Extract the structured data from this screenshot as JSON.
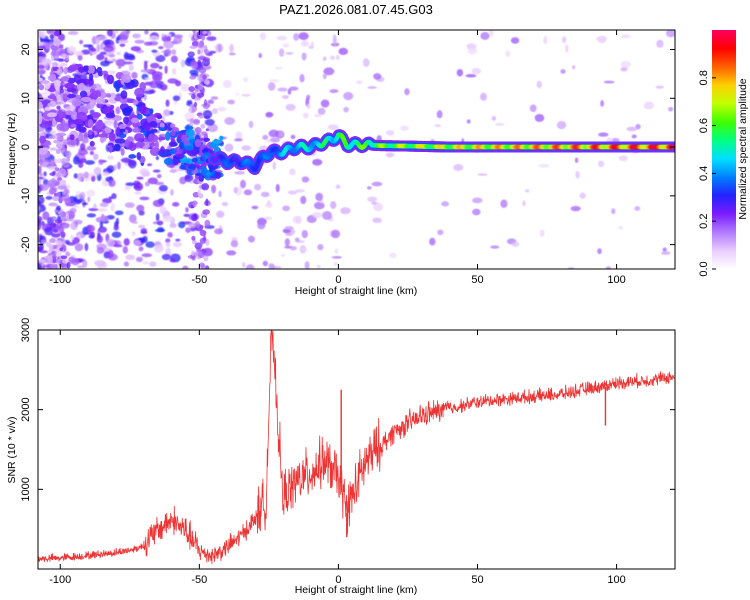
{
  "title": "PAZ1.2026.081.07.45.G03",
  "colors": {
    "snr_line": "#ee3333",
    "track_low": "#7a1cff",
    "track_mid": "#00d0ff",
    "track_high": "#ff0000"
  },
  "chart_data": [
    {
      "type": "heatmap",
      "name": "spectrogram",
      "xlabel": "Height of straight line (km)",
      "ylabel": "Frequency (Hz)",
      "xlim": [
        -108,
        121
      ],
      "ylim": [
        -25,
        24
      ],
      "xticks": [
        -100,
        -50,
        0,
        50,
        100
      ],
      "xtick_labels": [
        "-100",
        "-50",
        "0",
        "50",
        "100"
      ],
      "yticks": [
        20,
        10,
        0,
        -10,
        -20
      ],
      "ytick_labels": [
        "20",
        "10",
        "0",
        "-10",
        "-20"
      ],
      "colorbar": {
        "label": "Normalized spectral amplitude",
        "range": [
          0,
          1
        ],
        "ticks": [
          0,
          0.2,
          0.4,
          0.6,
          0.8
        ],
        "tick_labels": [
          "0.0",
          "0.2",
          "0.4",
          "0.6",
          "0.8"
        ],
        "colormap": [
          "#ffffff",
          "#e9ccff",
          "#b27aff",
          "#7a1cff",
          "#2222ff",
          "#0080ff",
          "#00e0ff",
          "#00ff80",
          "#40ff00",
          "#c0ff00",
          "#ffd000",
          "#ff6000",
          "#ff0000",
          "#ff0060"
        ]
      },
      "dominant_track": {
        "x": [
          -105,
          -95,
          -85,
          -78,
          -72,
          -66,
          -60,
          -55,
          -50,
          -45,
          -40,
          -35,
          -30,
          -27,
          -24,
          -20,
          -15,
          -10,
          -5,
          -2,
          0,
          3,
          8,
          15,
          25,
          40,
          60,
          80,
          100,
          121
        ],
        "y": [
          6,
          9,
          8,
          7,
          5,
          3,
          1,
          0,
          -2,
          -2,
          -3,
          -3,
          -4,
          -2,
          -1,
          -1,
          0,
          0,
          1,
          1.5,
          2.5,
          0.5,
          0.5,
          0.3,
          0.2,
          0,
          0,
          0,
          0,
          0
        ],
        "amplitude": [
          0.15,
          0.2,
          0.22,
          0.25,
          0.25,
          0.25,
          0.28,
          0.3,
          0.3,
          0.3,
          0.35,
          0.35,
          0.4,
          0.35,
          0.4,
          0.45,
          0.5,
          0.5,
          0.55,
          0.55,
          0.6,
          0.6,
          0.62,
          0.65,
          0.7,
          0.75,
          0.8,
          0.85,
          0.9,
          0.95
        ]
      }
    },
    {
      "type": "line",
      "name": "snr",
      "xlabel": "Height of straight line (km)",
      "ylabel": "SNR (10 * v/v)",
      "xlim": [
        -108,
        121
      ],
      "ylim": [
        0,
        3000
      ],
      "xticks": [
        -100,
        -50,
        0,
        50,
        100
      ],
      "xtick_labels": [
        "-100",
        "-50",
        "0",
        "50",
        "100"
      ],
      "yticks": [
        1000,
        2000,
        3000
      ],
      "ytick_labels": [
        "1000",
        "2000",
        "3000"
      ],
      "series": [
        {
          "name": "SNR",
          "x": [
            -108,
            -100,
            -90,
            -80,
            -75,
            -70,
            -65,
            -60,
            -55,
            -50,
            -45,
            -40,
            -35,
            -30,
            -26,
            -24,
            -20,
            -15,
            -10,
            -5,
            0,
            3,
            10,
            20,
            30,
            40,
            50,
            60,
            70,
            80,
            90,
            95,
            100,
            110,
            121
          ],
          "y": [
            120,
            130,
            160,
            200,
            230,
            280,
            450,
            600,
            450,
            200,
            150,
            250,
            400,
            600,
            800,
            3000,
            850,
            1050,
            1150,
            1300,
            1100,
            700,
            1300,
            1700,
            1900,
            2000,
            2080,
            2120,
            2150,
            2180,
            2250,
            2280,
            2320,
            2350,
            2400
          ]
        }
      ],
      "spikes": [
        {
          "x": -24,
          "y": 3000
        },
        {
          "x": 1,
          "y": 2250
        },
        {
          "x": 3,
          "y": 400
        },
        {
          "x": 96,
          "y": 1800
        }
      ]
    }
  ]
}
